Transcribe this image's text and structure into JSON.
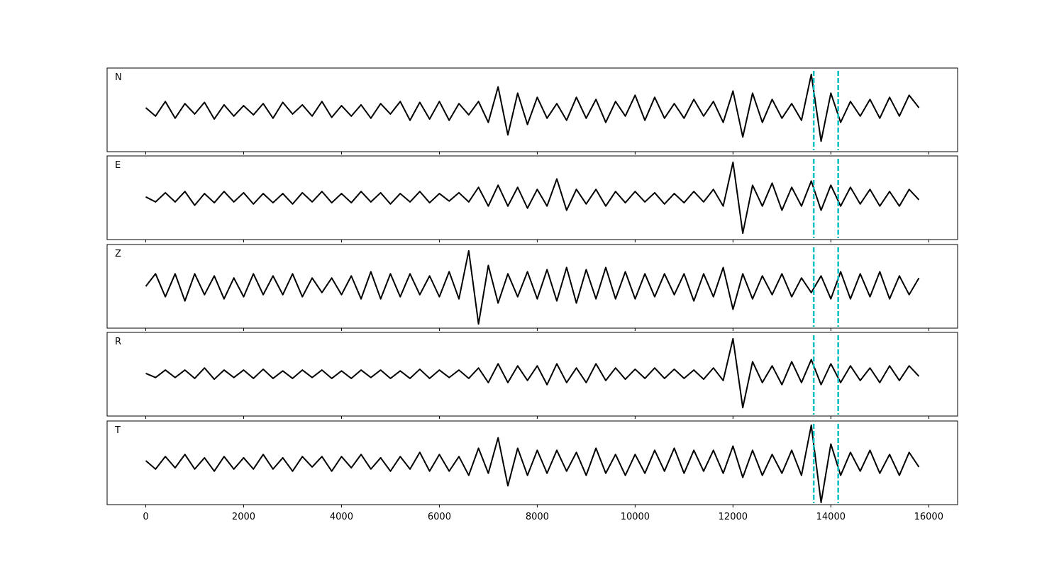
{
  "chart_data": [
    {
      "type": "line",
      "label": "N",
      "x": [
        0,
        200,
        400,
        600,
        800,
        1000,
        1200,
        1400,
        1600,
        1800,
        2000,
        2200,
        2400,
        2600,
        2800,
        3000,
        3200,
        3400,
        3600,
        3800,
        4000,
        4200,
        4400,
        4600,
        4800,
        5000,
        5200,
        5400,
        5600,
        5800,
        6000,
        6200,
        6400,
        6600,
        6800,
        7000,
        7200,
        7400,
        7600,
        7800,
        8000,
        8200,
        8400,
        8600,
        8800,
        9000,
        9200,
        9400,
        9600,
        9800,
        10000,
        10200,
        10400,
        10600,
        10800,
        11000,
        11200,
        11400,
        11600,
        11800,
        12000,
        12200,
        12400,
        12600,
        12800,
        13000,
        13200,
        13400,
        13600,
        13800,
        14000,
        14200,
        14400,
        14600,
        14800,
        15000,
        15200,
        15400,
        15600,
        15800
      ],
      "series": [
        {
          "color": "#000000",
          "values": [
            0.05,
            -0.15,
            0.2,
            -0.2,
            0.15,
            -0.1,
            0.18,
            -0.22,
            0.12,
            -0.15,
            0.1,
            -0.12,
            0.15,
            -0.2,
            0.18,
            -0.1,
            0.12,
            -0.15,
            0.2,
            -0.18,
            0.1,
            -0.15,
            0.12,
            -0.2,
            0.15,
            -0.1,
            0.2,
            -0.25,
            0.18,
            -0.22,
            0.2,
            -0.25,
            0.15,
            -0.12,
            0.2,
            -0.3,
            0.55,
            -0.6,
            0.4,
            -0.35,
            0.3,
            -0.2,
            0.15,
            -0.25,
            0.3,
            -0.2,
            0.25,
            -0.3,
            0.2,
            -0.15,
            0.35,
            -0.25,
            0.3,
            -0.2,
            0.15,
            -0.2,
            0.25,
            -0.15,
            0.2,
            -0.3,
            0.45,
            -0.65,
            0.4,
            -0.3,
            0.25,
            -0.2,
            0.15,
            -0.25,
            0.85,
            -0.75,
            0.4,
            -0.3,
            0.2,
            -0.15,
            0.25,
            -0.2,
            0.3,
            -0.15,
            0.35,
            0.05
          ]
        }
      ],
      "xlim": [
        -790,
        16590
      ],
      "ylim": [
        -1,
        1
      ],
      "xticks": [
        0,
        2000,
        4000,
        6000,
        8000,
        10000,
        12000,
        14000,
        16000
      ],
      "xtick_labels": false,
      "vlines": {
        "x": [
          13650,
          14150
        ],
        "color": "#00bfbf",
        "style": "dashed"
      }
    },
    {
      "type": "line",
      "label": "E",
      "x": [
        0,
        200,
        400,
        600,
        800,
        1000,
        1200,
        1400,
        1600,
        1800,
        2000,
        2200,
        2400,
        2600,
        2800,
        3000,
        3200,
        3400,
        3600,
        3800,
        4000,
        4200,
        4400,
        4600,
        4800,
        5000,
        5200,
        5400,
        5600,
        5800,
        6000,
        6200,
        6400,
        6600,
        6800,
        7000,
        7200,
        7400,
        7600,
        7800,
        8000,
        8200,
        8400,
        8600,
        8800,
        9000,
        9200,
        9400,
        9600,
        9800,
        10000,
        10200,
        10400,
        10600,
        10800,
        11000,
        11200,
        11400,
        11600,
        11800,
        12000,
        12200,
        12400,
        12600,
        12800,
        13000,
        13200,
        13400,
        13600,
        13800,
        14000,
        14200,
        14400,
        14600,
        14800,
        15000,
        15200,
        15400,
        15600,
        15800
      ],
      "series": [
        {
          "color": "#000000",
          "values": [
            0.02,
            -0.1,
            0.12,
            -0.1,
            0.15,
            -0.18,
            0.1,
            -0.12,
            0.15,
            -0.1,
            0.12,
            -0.15,
            0.1,
            -0.12,
            0.1,
            -0.15,
            0.12,
            -0.1,
            0.15,
            -0.12,
            0.1,
            -0.12,
            0.15,
            -0.1,
            0.12,
            -0.15,
            0.1,
            -0.1,
            0.15,
            -0.12,
            0.1,
            -0.08,
            0.12,
            -0.1,
            0.25,
            -0.2,
            0.3,
            -0.2,
            0.25,
            -0.25,
            0.2,
            -0.2,
            0.45,
            -0.3,
            0.2,
            -0.15,
            0.2,
            -0.2,
            0.15,
            -0.12,
            0.15,
            -0.1,
            0.12,
            -0.15,
            0.1,
            -0.12,
            0.15,
            -0.1,
            0.2,
            -0.2,
            0.85,
            -0.85,
            0.3,
            -0.2,
            0.35,
            -0.3,
            0.25,
            -0.2,
            0.4,
            -0.3,
            0.3,
            -0.2,
            0.25,
            -0.15,
            0.2,
            -0.2,
            0.15,
            -0.2,
            0.2,
            -0.05
          ]
        }
      ],
      "xlim": [
        -790,
        16590
      ],
      "ylim": [
        -1,
        1
      ],
      "xticks": [
        0,
        2000,
        4000,
        6000,
        8000,
        10000,
        12000,
        14000,
        16000
      ],
      "xtick_labels": false,
      "vlines": {
        "x": [
          13650,
          14150
        ],
        "color": "#00bfbf",
        "style": "dashed"
      }
    },
    {
      "type": "line",
      "label": "Z",
      "x": [
        0,
        200,
        400,
        600,
        800,
        1000,
        1200,
        1400,
        1600,
        1800,
        2000,
        2200,
        2400,
        2600,
        2800,
        3000,
        3200,
        3400,
        3600,
        3800,
        4000,
        4200,
        4400,
        4600,
        4800,
        5000,
        5200,
        5400,
        5600,
        5800,
        6000,
        6200,
        6400,
        6600,
        6800,
        7000,
        7200,
        7400,
        7600,
        7800,
        8000,
        8200,
        8400,
        8600,
        8800,
        9000,
        9200,
        9400,
        9600,
        9800,
        10000,
        10200,
        10400,
        10600,
        10800,
        11000,
        11200,
        11400,
        11600,
        11800,
        12000,
        12200,
        12400,
        12600,
        12800,
        13000,
        13200,
        13400,
        13600,
        13800,
        14000,
        14200,
        14400,
        14600,
        14800,
        15000,
        15200,
        15400,
        15600,
        15800
      ],
      "series": [
        {
          "color": "#000000",
          "values": [
            0.0,
            0.3,
            -0.25,
            0.3,
            -0.35,
            0.3,
            -0.2,
            0.25,
            -0.3,
            0.2,
            -0.25,
            0.3,
            -0.2,
            0.25,
            -0.2,
            0.3,
            -0.25,
            0.2,
            -0.15,
            0.2,
            -0.2,
            0.25,
            -0.3,
            0.35,
            -0.3,
            0.3,
            -0.25,
            0.3,
            -0.2,
            0.25,
            -0.25,
            0.35,
            -0.3,
            0.85,
            -0.9,
            0.5,
            -0.4,
            0.3,
            -0.25,
            0.35,
            -0.3,
            0.4,
            -0.35,
            0.45,
            -0.4,
            0.4,
            -0.3,
            0.45,
            -0.3,
            0.35,
            -0.3,
            0.3,
            -0.25,
            0.3,
            -0.2,
            0.3,
            -0.35,
            0.3,
            -0.25,
            0.45,
            -0.55,
            0.3,
            -0.3,
            0.25,
            -0.2,
            0.3,
            -0.25,
            0.2,
            -0.15,
            0.25,
            -0.3,
            0.35,
            -0.3,
            0.3,
            -0.25,
            0.35,
            -0.3,
            0.25,
            -0.2,
            0.2
          ]
        }
      ],
      "xlim": [
        -790,
        16590
      ],
      "ylim": [
        -1,
        1
      ],
      "xticks": [
        0,
        2000,
        4000,
        6000,
        8000,
        10000,
        12000,
        14000,
        16000
      ],
      "xtick_labels": false,
      "vlines": {
        "x": [
          13650,
          14150
        ],
        "color": "#00bfbf",
        "style": "dashed"
      }
    },
    {
      "type": "line",
      "label": "R",
      "x": [
        0,
        200,
        400,
        600,
        800,
        1000,
        1200,
        1400,
        1600,
        1800,
        2000,
        2200,
        2400,
        2600,
        2800,
        3000,
        3200,
        3400,
        3600,
        3800,
        4000,
        4200,
        4400,
        4600,
        4800,
        5000,
        5200,
        5400,
        5600,
        5800,
        6000,
        6200,
        6400,
        6600,
        6800,
        7000,
        7200,
        7400,
        7600,
        7800,
        8000,
        8200,
        8400,
        8600,
        8800,
        9000,
        9200,
        9400,
        9600,
        9800,
        10000,
        10200,
        10400,
        10600,
        10800,
        11000,
        11200,
        11400,
        11600,
        11800,
        12000,
        12200,
        12400,
        12600,
        12800,
        13000,
        13200,
        13400,
        13600,
        13800,
        14000,
        14200,
        14400,
        14600,
        14800,
        15000,
        15200,
        15400,
        15600,
        15800
      ],
      "series": [
        {
          "color": "#000000",
          "values": [
            0.02,
            -0.08,
            0.1,
            -0.08,
            0.1,
            -0.1,
            0.15,
            -0.12,
            0.1,
            -0.08,
            0.1,
            -0.1,
            0.12,
            -0.1,
            0.08,
            -0.1,
            0.1,
            -0.08,
            0.1,
            -0.1,
            0.08,
            -0.1,
            0.1,
            -0.08,
            0.1,
            -0.1,
            0.08,
            -0.1,
            0.12,
            -0.1,
            0.1,
            -0.08,
            0.1,
            -0.1,
            0.15,
            -0.2,
            0.25,
            -0.2,
            0.2,
            -0.15,
            0.2,
            -0.25,
            0.25,
            -0.2,
            0.15,
            -0.2,
            0.25,
            -0.15,
            0.15,
            -0.12,
            0.12,
            -0.1,
            0.15,
            -0.1,
            0.12,
            -0.1,
            0.1,
            -0.12,
            0.15,
            -0.15,
            0.85,
            -0.8,
            0.3,
            -0.2,
            0.2,
            -0.25,
            0.3,
            -0.2,
            0.35,
            -0.25,
            0.25,
            -0.2,
            0.2,
            -0.15,
            0.15,
            -0.2,
            0.2,
            -0.15,
            0.2,
            -0.05
          ]
        }
      ],
      "xlim": [
        -790,
        16590
      ],
      "ylim": [
        -1,
        1
      ],
      "xticks": [
        0,
        2000,
        4000,
        6000,
        8000,
        10000,
        12000,
        14000,
        16000
      ],
      "xtick_labels": false,
      "vlines": {
        "x": [
          13650,
          14150
        ],
        "color": "#00bfbf",
        "style": "dashed"
      }
    },
    {
      "type": "line",
      "label": "T",
      "x": [
        0,
        200,
        400,
        600,
        800,
        1000,
        1200,
        1400,
        1600,
        1800,
        2000,
        2200,
        2400,
        2600,
        2800,
        3000,
        3200,
        3400,
        3600,
        3800,
        4000,
        4200,
        4400,
        4600,
        4800,
        5000,
        5200,
        5400,
        5600,
        5800,
        6000,
        6200,
        6400,
        6600,
        6800,
        7000,
        7200,
        7400,
        7600,
        7800,
        8000,
        8200,
        8400,
        8600,
        8800,
        9000,
        9200,
        9400,
        9600,
        9800,
        10000,
        10200,
        10400,
        10600,
        10800,
        11000,
        11200,
        11400,
        11600,
        11800,
        12000,
        12200,
        12400,
        12600,
        12800,
        13000,
        13200,
        13400,
        13600,
        13800,
        14000,
        14200,
        14400,
        14600,
        14800,
        15000,
        15200,
        15400,
        15600,
        15800
      ],
      "series": [
        {
          "color": "#000000",
          "values": [
            0.05,
            -0.15,
            0.15,
            -0.12,
            0.2,
            -0.15,
            0.12,
            -0.2,
            0.15,
            -0.15,
            0.12,
            -0.15,
            0.2,
            -0.15,
            0.12,
            -0.2,
            0.15,
            -0.1,
            0.15,
            -0.2,
            0.15,
            -0.12,
            0.2,
            -0.15,
            0.12,
            -0.2,
            0.15,
            -0.15,
            0.25,
            -0.2,
            0.2,
            -0.2,
            0.15,
            -0.3,
            0.35,
            -0.25,
            0.6,
            -0.55,
            0.35,
            -0.3,
            0.3,
            -0.25,
            0.3,
            -0.2,
            0.25,
            -0.3,
            0.35,
            -0.25,
            0.2,
            -0.3,
            0.2,
            -0.25,
            0.3,
            -0.2,
            0.35,
            -0.25,
            0.3,
            -0.2,
            0.3,
            -0.25,
            0.4,
            -0.35,
            0.3,
            -0.3,
            0.2,
            -0.25,
            0.3,
            -0.3,
            0.9,
            -0.95,
            0.45,
            -0.3,
            0.25,
            -0.2,
            0.3,
            -0.25,
            0.2,
            -0.3,
            0.25,
            -0.1
          ]
        }
      ],
      "xlim": [
        -790,
        16590
      ],
      "ylim": [
        -1,
        1
      ],
      "xticks": [
        0,
        2000,
        4000,
        6000,
        8000,
        10000,
        12000,
        14000,
        16000
      ],
      "xtick_labels": true,
      "vlines": {
        "x": [
          13650,
          14150
        ],
        "color": "#00bfbf",
        "style": "dashed"
      }
    }
  ]
}
